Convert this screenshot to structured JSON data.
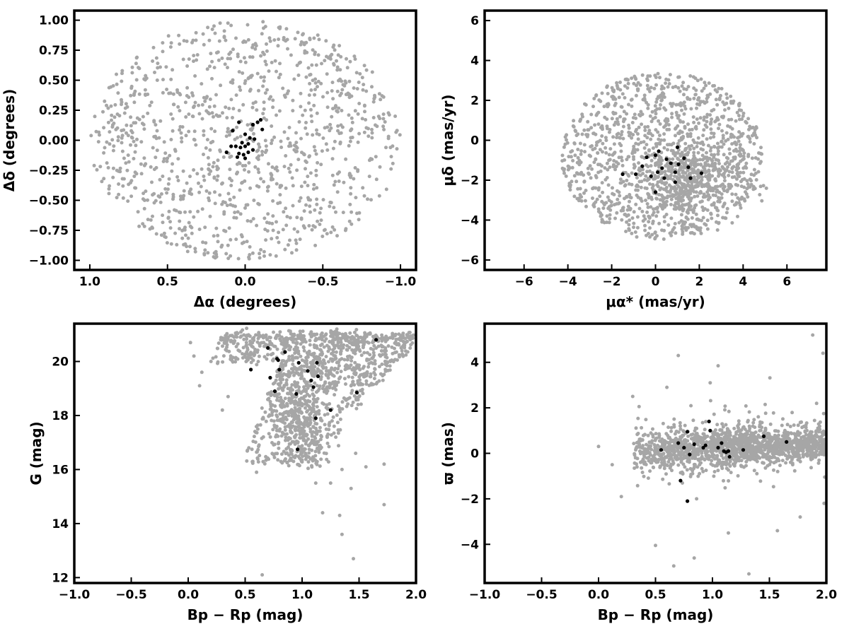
{
  "colors": {
    "field": "#a6a6a6",
    "members": "#000000",
    "axes": "#000000",
    "background": "#ffffff"
  },
  "chart_data": [
    {
      "id": "position",
      "type": "scatter",
      "xlabel": "Δα (degrees)",
      "ylabel": "Δδ (degrees)",
      "x_inverted": true,
      "xlim": [
        1.1,
        -1.1
      ],
      "ylim": [
        -1.08,
        1.08
      ],
      "xticks": [
        1.0,
        0.5,
        0.0,
        -0.5,
        -1.0
      ],
      "xtick_labels": [
        "1.0",
        "0.5",
        "0.0",
        "−0.5",
        "−1.0"
      ],
      "yticks": [
        1.0,
        0.75,
        0.5,
        0.25,
        0.0,
        -0.25,
        -0.5,
        -0.75,
        -1.0
      ],
      "ytick_labels": [
        "1.00",
        "0.75",
        "0.50",
        "0.25",
        "0.00",
        "−0.25",
        "−0.50",
        "−0.75",
        "−1.00"
      ],
      "grid": false,
      "series": [
        {
          "role": "field",
          "color": "#a6a6a6",
          "distribution": {
            "shape": "disk",
            "center": [
              0,
              0
            ],
            "radius": [
              1.0,
              1.0
            ],
            "count": 1100
          }
        },
        {
          "role": "members",
          "color": "#000000",
          "points": [
            [
              0.08,
              0.08
            ],
            [
              0.04,
              0.15
            ],
            [
              0.0,
              0.05
            ],
            [
              -0.05,
              0.13
            ],
            [
              -0.08,
              0.15
            ],
            [
              -0.1,
              0.17
            ],
            [
              -0.11,
              0.09
            ],
            [
              -0.06,
              0.01
            ],
            [
              -0.03,
              0.02
            ],
            [
              0.02,
              -0.02
            ],
            [
              0.06,
              -0.05
            ],
            [
              0.09,
              -0.05
            ],
            [
              0.12,
              -0.1
            ],
            [
              0.03,
              -0.06
            ],
            [
              0.0,
              -0.05
            ],
            [
              -0.02,
              -0.03
            ],
            [
              -0.05,
              -0.08
            ],
            [
              0.01,
              -0.12
            ],
            [
              0.04,
              -0.11
            ],
            [
              0.0,
              -0.15
            ],
            [
              -0.02,
              -0.1
            ],
            [
              0.05,
              -0.14
            ]
          ]
        }
      ]
    },
    {
      "id": "proper-motion",
      "type": "scatter",
      "xlabel": "μα* (mas/yr)",
      "ylabel": "μδ (mas/yr)",
      "xlim": [
        -7.8,
        7.8
      ],
      "ylim": [
        -6.5,
        6.5
      ],
      "xticks": [
        -6,
        -4,
        -2,
        0,
        2,
        4,
        6
      ],
      "xtick_labels": [
        "−6",
        "−4",
        "−2",
        "0",
        "2",
        "4",
        "6"
      ],
      "yticks": [
        6,
        4,
        2,
        0,
        -2,
        -4,
        -6
      ],
      "ytick_labels": [
        "6",
        "4",
        "2",
        "0",
        "−2",
        "−4",
        "−6"
      ],
      "grid": false,
      "series": [
        {
          "role": "field",
          "color": "#a6a6a6",
          "distribution": {
            "shape": "disk",
            "center": [
              0.3,
              -0.8
            ],
            "radius": [
              4.6,
              4.2
            ],
            "count": 1150,
            "core": {
              "center": [
                1.5,
                -2.0
              ],
              "sigma": [
                1.2,
                1.0
              ],
              "count": 420
            }
          }
        },
        {
          "role": "members",
          "color": "#000000",
          "points": [
            [
              -1.5,
              -1.7
            ],
            [
              -0.9,
              -1.7
            ],
            [
              -0.6,
              -1.3
            ],
            [
              -0.4,
              -0.85
            ],
            [
              -0.2,
              -1.8
            ],
            [
              0.0,
              -2.6
            ],
            [
              0.0,
              -0.75
            ],
            [
              0.1,
              -1.6
            ],
            [
              0.15,
              -0.55
            ],
            [
              0.3,
              -1.4
            ],
            [
              0.4,
              -1.9
            ],
            [
              0.5,
              -0.95
            ],
            [
              0.7,
              -1.15
            ],
            [
              0.9,
              -2.1
            ],
            [
              0.9,
              -1.6
            ],
            [
              1.0,
              -0.35
            ],
            [
              1.05,
              -1.2
            ],
            [
              1.3,
              -0.9
            ],
            [
              1.5,
              -1.35
            ],
            [
              1.6,
              -1.9
            ],
            [
              2.1,
              -1.65
            ]
          ]
        }
      ]
    },
    {
      "id": "cmd",
      "type": "scatter",
      "xlabel": "Bp − Rp (mag)",
      "ylabel": "G (mag)",
      "y_inverted": false,
      "xlim": [
        -1.0,
        2.0
      ],
      "ylim": [
        11.8,
        21.4
      ],
      "xticks": [
        -1.0,
        -0.5,
        0.0,
        0.5,
        1.0,
        1.5,
        2.0
      ],
      "xtick_labels": [
        "−1.0",
        "−0.5",
        "0.0",
        "0.5",
        "1.0",
        "1.5",
        "2.0"
      ],
      "yticks": [
        20,
        18,
        16,
        14,
        12
      ],
      "ytick_labels": [
        "20",
        "18",
        "16",
        "14",
        "12"
      ],
      "grid": false,
      "series": [
        {
          "role": "field",
          "color": "#a6a6a6",
          "distribution": {
            "shape": "cmd-wedge",
            "count": 1500
          },
          "points": [
            [
              0.65,
              12.1
            ],
            [
              1.45,
              12.7
            ],
            [
              1.35,
              13.6
            ],
            [
              1.72,
              14.7
            ],
            [
              1.18,
              14.4
            ],
            [
              1.43,
              15.3
            ],
            [
              1.33,
              14.3
            ],
            [
              1.12,
              15.5
            ],
            [
              1.25,
              15.5
            ],
            [
              1.56,
              16.1
            ],
            [
              1.72,
              16.2
            ],
            [
              0.6,
              15.9
            ],
            [
              1.35,
              16.0
            ],
            [
              1.47,
              16.6
            ],
            [
              0.1,
              19.1
            ],
            [
              0.12,
              19.6
            ],
            [
              0.3,
              18.2
            ],
            [
              0.35,
              18.7
            ],
            [
              0.2,
              20.0
            ],
            [
              0.02,
              20.7
            ],
            [
              0.05,
              20.2
            ]
          ]
        },
        {
          "role": "members",
          "color": "#000000",
          "points": [
            [
              0.55,
              19.7
            ],
            [
              0.7,
              20.5
            ],
            [
              0.72,
              19.4
            ],
            [
              0.76,
              18.9
            ],
            [
              0.78,
              20.1
            ],
            [
              0.8,
              19.7
            ],
            [
              0.79,
              20.05
            ],
            [
              0.85,
              20.35
            ],
            [
              0.95,
              18.8
            ],
            [
              0.97,
              19.95
            ],
            [
              1.05,
              19.65
            ],
            [
              1.08,
              19.3
            ],
            [
              1.1,
              19.05
            ],
            [
              1.13,
              19.95
            ],
            [
              1.14,
              19.45
            ],
            [
              1.25,
              18.2
            ],
            [
              1.12,
              17.9
            ],
            [
              0.96,
              16.75
            ],
            [
              1.48,
              18.85
            ],
            [
              1.65,
              20.8
            ]
          ]
        }
      ]
    },
    {
      "id": "parallax",
      "type": "scatter",
      "xlabel": "Bp − Rp (mag)",
      "ylabel": "ϖ (mas)",
      "xlim": [
        -1.0,
        2.0
      ],
      "ylim": [
        -5.7,
        5.7
      ],
      "xticks": [
        -1.0,
        -0.5,
        0.0,
        0.5,
        1.0,
        1.5,
        2.0
      ],
      "xtick_labels": [
        "−1.0",
        "−0.5",
        "0.0",
        "0.5",
        "1.0",
        "1.5",
        "2.0"
      ],
      "yticks": [
        4,
        2,
        0,
        -2,
        -4
      ],
      "ytick_labels": [
        "4",
        "2",
        "0",
        "−2",
        "−4"
      ],
      "grid": false,
      "series": [
        {
          "role": "field",
          "color": "#a6a6a6",
          "distribution": {
            "shape": "parallax-band",
            "count": 1600
          },
          "points": [
            [
              0.66,
              -4.95
            ],
            [
              0.5,
              -4.05
            ],
            [
              0.84,
              -4.6
            ],
            [
              1.32,
              -5.3
            ],
            [
              1.88,
              5.2
            ],
            [
              1.97,
              4.4
            ],
            [
              0.7,
              4.3
            ],
            [
              0.3,
              2.5
            ],
            [
              0.6,
              2.9
            ],
            [
              1.05,
              3.85
            ],
            [
              0.98,
              3.1
            ],
            [
              1.14,
              -3.5
            ],
            [
              1.57,
              -3.4
            ],
            [
              1.77,
              -2.8
            ],
            [
              1.98,
              -2.2
            ],
            [
              0.2,
              -1.9
            ],
            [
              0.12,
              -0.5
            ],
            [
              0.0,
              0.3
            ]
          ]
        },
        {
          "role": "members",
          "color": "#000000",
          "points": [
            [
              0.55,
              0.15
            ],
            [
              0.7,
              0.45
            ],
            [
              0.72,
              -1.2
            ],
            [
              0.75,
              0.25
            ],
            [
              0.78,
              -2.1
            ],
            [
              0.78,
              0.95
            ],
            [
              0.8,
              -0.05
            ],
            [
              0.84,
              0.4
            ],
            [
              0.92,
              0.25
            ],
            [
              0.94,
              0.35
            ],
            [
              0.97,
              1.4
            ],
            [
              0.98,
              1.0
            ],
            [
              1.05,
              0.25
            ],
            [
              1.08,
              0.45
            ],
            [
              1.1,
              0.1
            ],
            [
              1.12,
              0.05
            ],
            [
              1.14,
              0.1
            ],
            [
              1.15,
              -0.15
            ],
            [
              1.27,
              0.15
            ],
            [
              1.45,
              0.75
            ],
            [
              1.65,
              0.5
            ]
          ]
        }
      ]
    }
  ]
}
